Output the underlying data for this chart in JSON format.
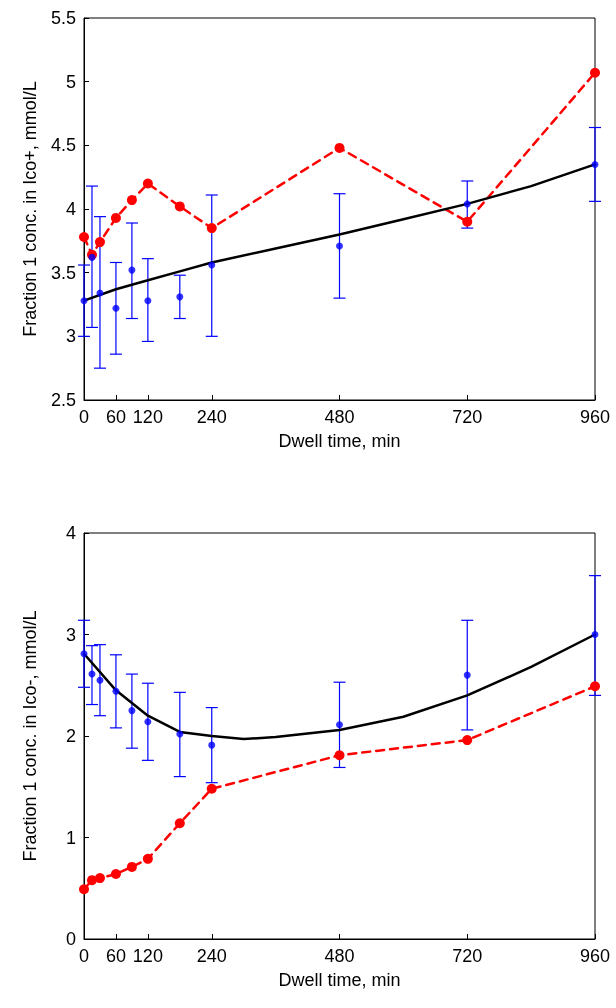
{
  "chart_data": [
    {
      "type": "line",
      "xlabel": "Dwell time, min",
      "ylabel": "Fraction 1 conc. in Ico+, mmol/L",
      "xlim": [
        0,
        960
      ],
      "xticks": [
        0,
        60,
        120,
        240,
        480,
        720,
        960
      ],
      "ylim": [
        2.5,
        5.5
      ],
      "yticks": [
        2.5,
        3,
        3.5,
        4,
        4.5,
        5,
        5.5
      ],
      "x": [
        0,
        15,
        30,
        60,
        90,
        120,
        180,
        240,
        480,
        720,
        960
      ],
      "series": [
        {
          "type": "scatter",
          "color": "#0000ff",
          "marker": "circle",
          "values": [
            3.28,
            3.62,
            3.34,
            3.22,
            3.52,
            3.28,
            3.31,
            3.56,
            3.71,
            4.04,
            4.35
          ],
          "errors": [
            [
              3.0,
              3.56
            ],
            [
              3.07,
              4.18
            ],
            [
              2.75,
              3.94
            ],
            [
              2.86,
              3.58
            ],
            [
              3.14,
              3.89
            ],
            [
              2.96,
              3.61
            ],
            [
              3.14,
              3.48
            ],
            [
              3.0,
              4.11
            ],
            [
              3.3,
              4.12
            ],
            [
              3.85,
              4.22
            ],
            [
              4.06,
              4.64
            ]
          ]
        },
        {
          "color": "#ff0000",
          "marker": "circle",
          "line_style": "dashed",
          "values": [
            3.78,
            3.64,
            3.74,
            3.93,
            4.07,
            4.2,
            4.02,
            3.85,
            4.48,
            3.9,
            5.07
          ]
        },
        {
          "color": "#000000",
          "marker": "none",
          "line_style": "solid",
          "x": [
            0,
            60,
            120,
            180,
            240,
            360,
            480,
            600,
            720,
            840,
            960
          ],
          "values": [
            3.28,
            3.37,
            3.44,
            3.51,
            3.58,
            3.69,
            3.8,
            3.92,
            4.04,
            4.18,
            4.35
          ]
        }
      ]
    },
    {
      "type": "line",
      "xlabel": "Dwell time, min",
      "ylabel": "Fraction 1 conc. in Ico-, mmol/L",
      "xlim": [
        0,
        960
      ],
      "xticks": [
        0,
        60,
        120,
        240,
        480,
        720,
        960
      ],
      "ylim": [
        0,
        4
      ],
      "yticks": [
        0,
        1,
        2,
        3,
        4
      ],
      "x": [
        0,
        15,
        30,
        60,
        90,
        120,
        180,
        240,
        480,
        720,
        960
      ],
      "series": [
        {
          "type": "scatter",
          "color": "#0000ff",
          "marker": "circle",
          "values": [
            2.81,
            2.61,
            2.55,
            2.44,
            2.25,
            2.14,
            2.02,
            1.91,
            2.11,
            2.6,
            3.0
          ],
          "errors": [
            [
              2.48,
              3.14
            ],
            [
              2.31,
              2.89
            ],
            [
              2.2,
              2.9
            ],
            [
              2.08,
              2.8
            ],
            [
              1.88,
              2.61
            ],
            [
              1.76,
              2.52
            ],
            [
              1.6,
              2.43
            ],
            [
              1.54,
              2.28
            ],
            [
              1.69,
              2.53
            ],
            [
              2.06,
              3.14
            ],
            [
              2.4,
              3.58
            ]
          ]
        },
        {
          "color": "#ff0000",
          "marker": "circle",
          "line_style": "dashed",
          "values": [
            0.49,
            0.58,
            0.6,
            0.64,
            0.71,
            0.79,
            1.14,
            1.48,
            1.81,
            1.96,
            2.49
          ]
        },
        {
          "color": "#000000",
          "marker": "none",
          "line_style": "solid",
          "x": [
            0,
            60,
            120,
            180,
            240,
            300,
            360,
            480,
            600,
            720,
            840,
            960
          ],
          "values": [
            2.81,
            2.45,
            2.2,
            2.04,
            2.0,
            1.97,
            1.99,
            2.06,
            2.19,
            2.4,
            2.68,
            3.0
          ]
        }
      ]
    }
  ]
}
